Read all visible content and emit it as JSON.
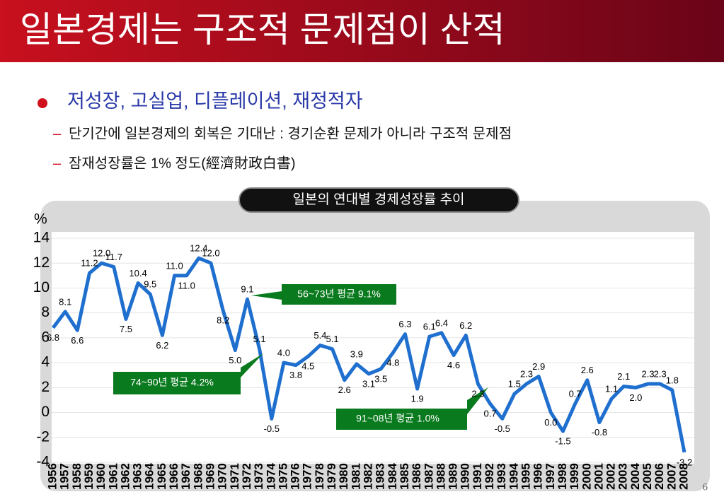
{
  "header": {
    "title": "일본경제는 구조적 문제점이 산적"
  },
  "bullets": {
    "main": "저성장, 고실업, 디플레이션, 재정적자",
    "subs": [
      "단기간에 일본경제의 회복은 기대난 : 경기순환 문제가 아니라 구조적 문제점",
      "잠재성장률은 1% 정도(經濟財政白書)"
    ]
  },
  "page_number": "6",
  "chart_data": {
    "type": "line",
    "title": "일본의 연대별 경제성장률 추이",
    "y_label": "%",
    "categories": [
      "1956",
      "1957",
      "1958",
      "1959",
      "1960",
      "1961",
      "1962",
      "1963",
      "1964",
      "1965",
      "1966",
      "1967",
      "1968",
      "1969",
      "1970",
      "1971",
      "1972",
      "1973",
      "1974",
      "1975",
      "1976",
      "1977",
      "1978",
      "1979",
      "1980",
      "1981",
      "1982",
      "1983",
      "1984",
      "1985",
      "1986",
      "1987",
      "1988",
      "1989",
      "1990",
      "1991",
      "1992",
      "1993",
      "1994",
      "1995",
      "1996",
      "1997",
      "1998",
      "1999",
      "2000",
      "2001",
      "2002",
      "2003",
      "2004",
      "2005",
      "2006",
      "2007",
      "2008"
    ],
    "series": [
      {
        "name": "경제성장률",
        "color": "#1f6fcf",
        "values": [
          6.8,
          8.1,
          6.6,
          11.2,
          12.0,
          11.7,
          7.5,
          10.4,
          9.5,
          6.2,
          11.0,
          11.0,
          12.4,
          12.0,
          8.2,
          5.0,
          9.1,
          5.1,
          -0.5,
          4.0,
          3.8,
          4.5,
          5.4,
          5.1,
          2.6,
          3.9,
          3.1,
          3.5,
          4.8,
          6.3,
          1.9,
          6.1,
          6.4,
          4.6,
          6.2,
          2.3,
          0.7,
          -0.5,
          1.5,
          2.3,
          2.9,
          0.0,
          -1.5,
          0.7,
          2.6,
          -0.8,
          1.1,
          2.1,
          2.0,
          2.3,
          2.3,
          1.8,
          -3.2
        ],
        "value_labels": [
          "6.8",
          "8.1",
          "6.6",
          "11.2",
          "12.0",
          "11.7",
          "7.5",
          "10.4",
          "9.5",
          "6.2",
          "11.0",
          "11.0",
          "12.4",
          "12.0",
          "8.2",
          "5.0",
          "9.1",
          "5.1",
          "-0.5",
          "4.0",
          "3.8",
          "4.5",
          "5.4",
          "5.1",
          "2.6",
          "3.9",
          "3.1",
          "3.5",
          "4.8",
          "6.3",
          "1.9",
          "6.1",
          "6.4",
          "4.6",
          "6.2",
          "2.3",
          "0.7",
          "-0.5",
          "1.5",
          "2.3",
          "2.9",
          "0.0",
          "-1.5",
          "0.7",
          "2.6",
          "-0.8",
          "1.1",
          "2.1",
          "2.0",
          "2.3",
          "2.3",
          "1.8",
          "-3.2"
        ]
      }
    ],
    "ylim": [
      -4,
      14
    ],
    "yticks": [
      -4,
      -2,
      0,
      2,
      4,
      6,
      8,
      10,
      12,
      14
    ],
    "grid": true,
    "annotations": [
      "56~73년 평균 9.1%",
      "74~90년 평균 4.2%",
      "91~08년 평균 1.0%"
    ]
  }
}
